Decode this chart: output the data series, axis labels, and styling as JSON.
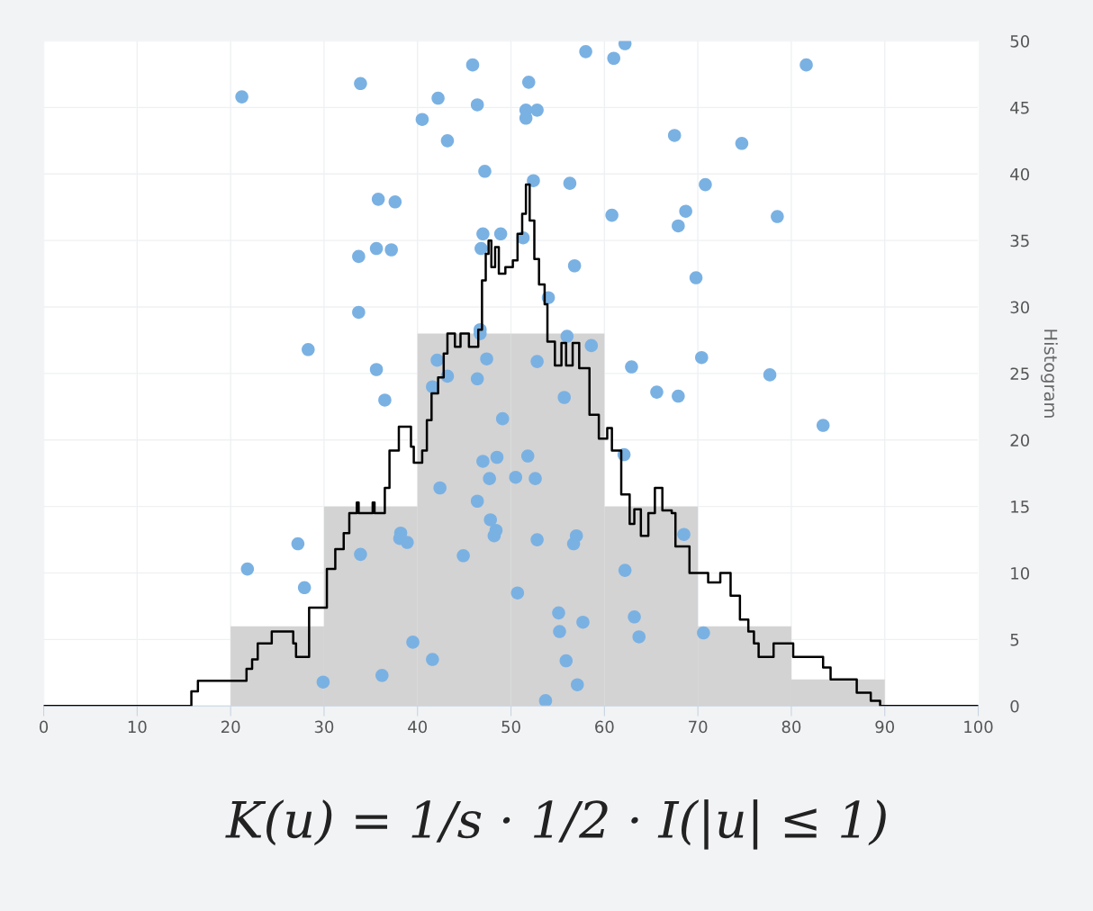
{
  "chart_data": {
    "type": "histogram",
    "ylabel": "Histogram",
    "bins": [
      20,
      30,
      40,
      50,
      60,
      70,
      80,
      90
    ],
    "values": [
      6,
      15,
      28,
      28,
      15,
      6,
      2
    ],
    "color": "#d3d3d3",
    "series": [
      {
        "type": "scatter",
        "color": "#7ab1e3",
        "marker": "circle",
        "x": [
          21.2,
          33.9,
          45.9,
          58.0,
          61.0,
          62.2,
          81.6,
          40.5,
          42.2,
          46.4,
          51.9,
          51.6,
          52.8,
          51.6,
          43.2,
          67.5,
          74.7,
          47.2,
          52.4,
          56.3,
          70.8,
          35.8,
          37.6,
          60.8,
          68.7,
          67.9,
          78.5,
          47.0,
          48.9,
          46.8,
          35.6,
          37.2,
          33.7,
          51.3,
          56.8,
          69.8,
          54.0,
          33.7,
          46.7,
          46.7,
          28.3,
          56.0,
          58.6,
          47.4,
          52.8,
          42.1,
          35.6,
          62.9,
          70.4,
          77.7,
          43.2,
          41.6,
          46.4,
          36.5,
          55.7,
          65.6,
          67.9,
          83.4,
          49.1,
          62.1,
          47.0,
          48.5,
          51.8,
          47.7,
          50.5,
          52.6,
          42.4,
          46.4,
          47.8,
          48.4,
          48.2,
          38.2,
          38.1,
          38.9,
          27.2,
          57.0,
          56.7,
          52.8,
          68.5,
          33.9,
          44.9,
          21.8,
          62.2,
          27.9,
          50.7,
          55.1,
          57.7,
          63.2,
          55.2,
          63.7,
          70.6,
          39.5,
          41.6,
          55.9,
          36.2,
          29.9,
          57.1,
          53.7
        ],
        "values": [
          45.8,
          46.8,
          48.2,
          49.2,
          48.7,
          49.8,
          48.2,
          44.1,
          45.7,
          45.2,
          46.9,
          44.8,
          44.8,
          44.2,
          42.5,
          42.9,
          42.3,
          40.2,
          39.5,
          39.3,
          39.2,
          38.1,
          37.9,
          36.9,
          37.2,
          36.1,
          36.8,
          35.5,
          35.5,
          34.4,
          34.4,
          34.3,
          33.8,
          35.2,
          33.1,
          32.2,
          30.7,
          29.6,
          28.3,
          28.0,
          26.8,
          27.8,
          27.1,
          26.1,
          25.9,
          26.0,
          25.3,
          25.5,
          26.2,
          24.9,
          24.8,
          24.0,
          24.6,
          23.0,
          23.2,
          23.6,
          23.3,
          21.1,
          21.6,
          18.9,
          18.4,
          18.7,
          18.8,
          17.1,
          17.2,
          17.1,
          16.4,
          15.4,
          14.0,
          13.2,
          12.8,
          13.0,
          12.6,
          12.3,
          12.2,
          12.8,
          12.2,
          12.5,
          12.9,
          11.4,
          11.3,
          10.3,
          10.2,
          8.9,
          8.5,
          7.0,
          6.3,
          6.7,
          5.6,
          5.2,
          5.5,
          4.8,
          3.5,
          3.4,
          2.3,
          1.8,
          1.6,
          0.4
        ]
      },
      {
        "type": "step",
        "color": "#000000",
        "x": [
          0,
          15.8,
          16.5,
          21.7,
          22.3,
          22.9,
          24.4,
          26.7,
          27.0,
          28.4,
          30.3,
          31.2,
          32.1,
          32.7,
          33.5,
          33.7,
          35.2,
          35.4,
          36.5,
          37.0,
          38.0,
          39.3,
          39.6,
          40.5,
          41.0,
          41.5,
          42.2,
          42.8,
          43.2,
          44.0,
          44.6,
          45.5,
          46.5,
          46.9,
          47.3,
          47.6,
          47.9,
          48.3,
          48.7,
          49.4,
          50.2,
          50.7,
          51.2,
          51.6,
          52.0,
          52.5,
          53.0,
          53.6,
          53.9,
          54.7,
          55.4,
          55.9,
          56.6,
          57.3,
          58.4,
          59.4,
          60.3,
          60.8,
          61.8,
          62.7,
          63.2,
          63.9,
          64.7,
          65.4,
          66.2,
          67.2,
          67.6,
          69.1,
          71.1,
          72.4,
          73.5,
          74.5,
          75.4,
          76.0,
          76.5,
          78.1,
          80.2,
          83.4,
          84.2,
          87.0,
          88.5,
          89.5,
          100
        ],
        "values": [
          0,
          1.1,
          1.9,
          2.8,
          3.5,
          4.7,
          5.6,
          4.7,
          3.7,
          7.4,
          10.3,
          11.8,
          13.0,
          14.5,
          15.3,
          14.5,
          15.3,
          14.5,
          16.4,
          19.2,
          21.0,
          19.5,
          18.3,
          19.2,
          21.5,
          23.5,
          24.7,
          26.5,
          28.0,
          27.0,
          28.0,
          27.0,
          28.3,
          32.0,
          34.0,
          35.0,
          33.0,
          34.5,
          32.5,
          33.0,
          33.5,
          35.5,
          37.0,
          39.2,
          36.5,
          33.6,
          31.7,
          30.2,
          27.4,
          25.6,
          27.3,
          25.6,
          27.3,
          25.4,
          21.9,
          20.1,
          20.9,
          19.2,
          15.9,
          13.7,
          14.8,
          12.8,
          14.5,
          16.4,
          14.7,
          14.5,
          12.0,
          10.0,
          9.3,
          10.0,
          8.3,
          6.5,
          5.6,
          4.7,
          3.7,
          4.7,
          3.7,
          2.9,
          2.0,
          1.0,
          0.4,
          0,
          0
        ]
      }
    ],
    "xlim": [
      0,
      100
    ],
    "xticks": [
      0,
      10,
      20,
      30,
      40,
      50,
      60,
      70,
      80,
      90,
      100
    ],
    "ylim": [
      0,
      50
    ],
    "yticks": [
      0,
      5,
      10,
      15,
      20,
      25,
      30,
      35,
      40,
      45,
      50
    ],
    "grid": true,
    "annotations": [
      "K(u) = 1/s · 1/2 · I(|u| ≤ 1)"
    ]
  }
}
